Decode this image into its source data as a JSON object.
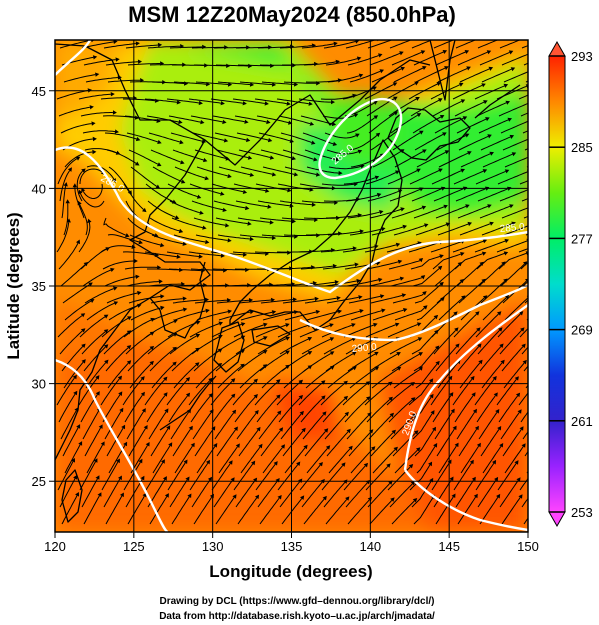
{
  "title": "MSM 12Z20May2024 (850.0hPa)",
  "map": {
    "xlabel": "Longitude (degrees)",
    "ylabel": "Latitude  (degrees)",
    "lon_range": [
      120,
      150
    ],
    "lat_range": [
      22.4,
      47.6
    ],
    "lon_ticks": [
      120,
      125,
      130,
      135,
      140,
      145,
      150
    ],
    "lat_ticks": [
      25,
      30,
      35,
      40,
      45
    ],
    "field": "temperature",
    "vectors": "streamlines",
    "contour_labels": [
      "285.0",
      "285.0",
      "290.0",
      "290.0",
      "285.0"
    ]
  },
  "colorbar": {
    "ticks": [
      293,
      285,
      277,
      269,
      261,
      253
    ],
    "min": 253,
    "max": 293,
    "colors": {
      "253": "#ff44ff",
      "256": "#cc22ff",
      "259": "#4422dd",
      "262": "#1133dd",
      "266": "#0099ff",
      "269": "#00ccdd",
      "272": "#00ddaa",
      "275": "#00ee55",
      "277": "#33ee22",
      "280": "#88ee11",
      "283": "#bbee11",
      "285": "#eeee00",
      "287": "#ffcc00",
      "289": "#ffaa00",
      "291": "#ff7700",
      "293": "#ff2200"
    }
  },
  "credits": {
    "line1": "Drawing by DCL (https://www.gfd–dennou.org/library/dcl/)",
    "line2": "Data from http://database.rish.kyoto–u.ac.jp/arch/jmadata/"
  },
  "colors": {
    "coast": "#000000",
    "contour": "#ffffff",
    "background": "#ffffff"
  }
}
